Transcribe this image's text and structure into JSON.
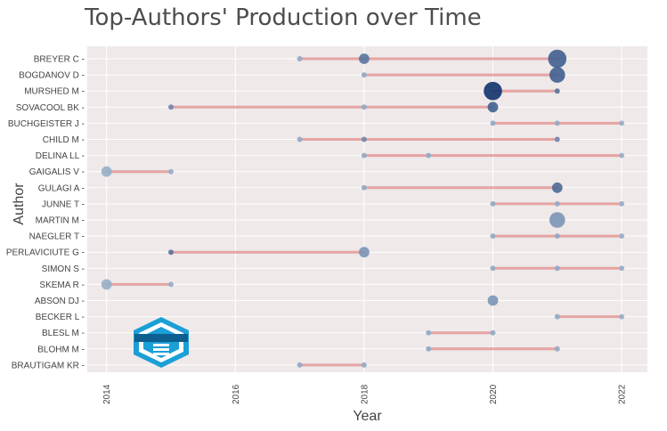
{
  "chart_data": {
    "type": "scatter",
    "title": "Top-Authors' Production over Time",
    "xlabel": "Year",
    "ylabel": "Author",
    "xlim": [
      2013.7,
      2022.4
    ],
    "x_ticks": [
      2014,
      2016,
      2018,
      2020,
      2022
    ],
    "grid": true,
    "authors": [
      "BREYER C",
      "BOGDANOV D",
      "MURSHED M",
      "SOVACOOL BK",
      "BUCHGEISTER J",
      "CHILD M",
      "DELINA LL",
      "GAIGALIS V",
      "GULAGI A",
      "JUNNE T",
      "MARTIN M",
      "NAEGLER T",
      "PERLAVICIUTE G",
      "SIMON S",
      "SKEMA R",
      "ABSON DJ",
      "BECKER L",
      "BLESL M",
      "BLOHM M",
      "BRAUTIGAM KR"
    ],
    "lines": [
      {
        "author": "BREYER C",
        "start": 2017,
        "end": 2021
      },
      {
        "author": "BOGDANOV D",
        "start": 2018,
        "end": 2021
      },
      {
        "author": "MURSHED M",
        "start": 2020,
        "end": 2021
      },
      {
        "author": "SOVACOOL BK",
        "start": 2015,
        "end": 2020
      },
      {
        "author": "BUCHGEISTER J",
        "start": 2020,
        "end": 2022
      },
      {
        "author": "CHILD M",
        "start": 2017,
        "end": 2021
      },
      {
        "author": "DELINA LL",
        "start": 2018,
        "end": 2022
      },
      {
        "author": "GAIGALIS V",
        "start": 2014,
        "end": 2015
      },
      {
        "author": "GULAGI A",
        "start": 2018,
        "end": 2021
      },
      {
        "author": "JUNNE T",
        "start": 2020,
        "end": 2022
      },
      {
        "author": "MARTIN M",
        "start": 2021,
        "end": 2021
      },
      {
        "author": "NAEGLER T",
        "start": 2020,
        "end": 2022
      },
      {
        "author": "PERLAVICIUTE G",
        "start": 2015,
        "end": 2018
      },
      {
        "author": "SIMON S",
        "start": 2020,
        "end": 2022
      },
      {
        "author": "SKEMA R",
        "start": 2014,
        "end": 2015
      },
      {
        "author": "ABSON DJ",
        "start": 2020,
        "end": 2020
      },
      {
        "author": "BECKER L",
        "start": 2021,
        "end": 2022
      },
      {
        "author": "BLESL M",
        "start": 2019,
        "end": 2020
      },
      {
        "author": "BLOHM M",
        "start": 2019,
        "end": 2021
      },
      {
        "author": "BRAUTIGAM KR",
        "start": 2017,
        "end": 2018
      }
    ],
    "points": [
      {
        "author": "BREYER C",
        "year": 2017,
        "articles": 1,
        "tc_per_year": 0.5
      },
      {
        "author": "BREYER C",
        "year": 2018,
        "articles": 3,
        "tc_per_year": 3
      },
      {
        "author": "BREYER C",
        "year": 2021,
        "articles": 6,
        "tc_per_year": 4
      },
      {
        "author": "BOGDANOV D",
        "year": 2018,
        "articles": 1,
        "tc_per_year": 0.5
      },
      {
        "author": "BOGDANOV D",
        "year": 2021,
        "articles": 5,
        "tc_per_year": 4
      },
      {
        "author": "MURSHED M",
        "year": 2020,
        "articles": 6,
        "tc_per_year": 6
      },
      {
        "author": "MURSHED M",
        "year": 2021,
        "articles": 1,
        "tc_per_year": 3
      },
      {
        "author": "SOVACOOL BK",
        "year": 2015,
        "articles": 1,
        "tc_per_year": 2
      },
      {
        "author": "SOVACOOL BK",
        "year": 2018,
        "articles": 1,
        "tc_per_year": 0.5
      },
      {
        "author": "SOVACOOL BK",
        "year": 2020,
        "articles": 3,
        "tc_per_year": 4
      },
      {
        "author": "BUCHGEISTER J",
        "year": 2020,
        "articles": 1,
        "tc_per_year": 0.5
      },
      {
        "author": "BUCHGEISTER J",
        "year": 2021,
        "articles": 1,
        "tc_per_year": 0.5
      },
      {
        "author": "BUCHGEISTER J",
        "year": 2022,
        "articles": 1,
        "tc_per_year": 0.3
      },
      {
        "author": "CHILD M",
        "year": 2017,
        "articles": 1,
        "tc_per_year": 0.5
      },
      {
        "author": "CHILD M",
        "year": 2018,
        "articles": 1,
        "tc_per_year": 2
      },
      {
        "author": "CHILD M",
        "year": 2021,
        "articles": 1,
        "tc_per_year": 2
      },
      {
        "author": "DELINA LL",
        "year": 2018,
        "articles": 1,
        "tc_per_year": 0.5
      },
      {
        "author": "DELINA LL",
        "year": 2019,
        "articles": 1,
        "tc_per_year": 0.5
      },
      {
        "author": "DELINA LL",
        "year": 2022,
        "articles": 1,
        "tc_per_year": 0.3
      },
      {
        "author": "GAIGALIS V",
        "year": 2014,
        "articles": 3,
        "tc_per_year": 0.3
      },
      {
        "author": "GAIGALIS V",
        "year": 2015,
        "articles": 1,
        "tc_per_year": 0.3
      },
      {
        "author": "GULAGI A",
        "year": 2018,
        "articles": 1,
        "tc_per_year": 0.5
      },
      {
        "author": "GULAGI A",
        "year": 2021,
        "articles": 3,
        "tc_per_year": 3.5
      },
      {
        "author": "JUNNE T",
        "year": 2020,
        "articles": 1,
        "tc_per_year": 0.5
      },
      {
        "author": "JUNNE T",
        "year": 2021,
        "articles": 1,
        "tc_per_year": 0.5
      },
      {
        "author": "JUNNE T",
        "year": 2022,
        "articles": 1,
        "tc_per_year": 0.3
      },
      {
        "author": "MARTIN M",
        "year": 2021,
        "articles": 5,
        "tc_per_year": 1.5
      },
      {
        "author": "NAEGLER T",
        "year": 2020,
        "articles": 1,
        "tc_per_year": 0.5
      },
      {
        "author": "NAEGLER T",
        "year": 2021,
        "articles": 1,
        "tc_per_year": 0.5
      },
      {
        "author": "NAEGLER T",
        "year": 2022,
        "articles": 1,
        "tc_per_year": 0.3
      },
      {
        "author": "PERLAVICIUTE G",
        "year": 2015,
        "articles": 1,
        "tc_per_year": 3
      },
      {
        "author": "PERLAVICIUTE G",
        "year": 2018,
        "articles": 3,
        "tc_per_year": 1.5
      },
      {
        "author": "SIMON S",
        "year": 2020,
        "articles": 1,
        "tc_per_year": 0.5
      },
      {
        "author": "SIMON S",
        "year": 2021,
        "articles": 1,
        "tc_per_year": 0.5
      },
      {
        "author": "SIMON S",
        "year": 2022,
        "articles": 1,
        "tc_per_year": 0.3
      },
      {
        "author": "SKEMA R",
        "year": 2014,
        "articles": 3,
        "tc_per_year": 0.3
      },
      {
        "author": "SKEMA R",
        "year": 2015,
        "articles": 1,
        "tc_per_year": 0.3
      },
      {
        "author": "ABSON DJ",
        "year": 2020,
        "articles": 3,
        "tc_per_year": 1.5
      },
      {
        "author": "BECKER L",
        "year": 2021,
        "articles": 1,
        "tc_per_year": 0.5
      },
      {
        "author": "BECKER L",
        "year": 2022,
        "articles": 1,
        "tc_per_year": 0.3
      },
      {
        "author": "BLESL M",
        "year": 2019,
        "articles": 1,
        "tc_per_year": 0.5
      },
      {
        "author": "BLESL M",
        "year": 2020,
        "articles": 1,
        "tc_per_year": 0.5
      },
      {
        "author": "BLOHM M",
        "year": 2019,
        "articles": 1,
        "tc_per_year": 0.5
      },
      {
        "author": "BLOHM M",
        "year": 2021,
        "articles": 1,
        "tc_per_year": 0.5
      },
      {
        "author": "BRAUTIGAM KR",
        "year": 2017,
        "articles": 1,
        "tc_per_year": 0.5
      },
      {
        "author": "BRAUTIGAM KR",
        "year": 2018,
        "articles": 1,
        "tc_per_year": 0.5
      }
    ]
  },
  "colors": {
    "background": "#ffffff",
    "plot_background": "#efe9e9",
    "grid": "#ffffff",
    "line": "#e08a8a",
    "point_low": "#9db6cf",
    "point_high": "#12336e",
    "title_text": "#4d4d4d",
    "axis_text": "#444444",
    "logo_blue": "#1a9fd6",
    "logo_dark": "#0d5f8f"
  }
}
